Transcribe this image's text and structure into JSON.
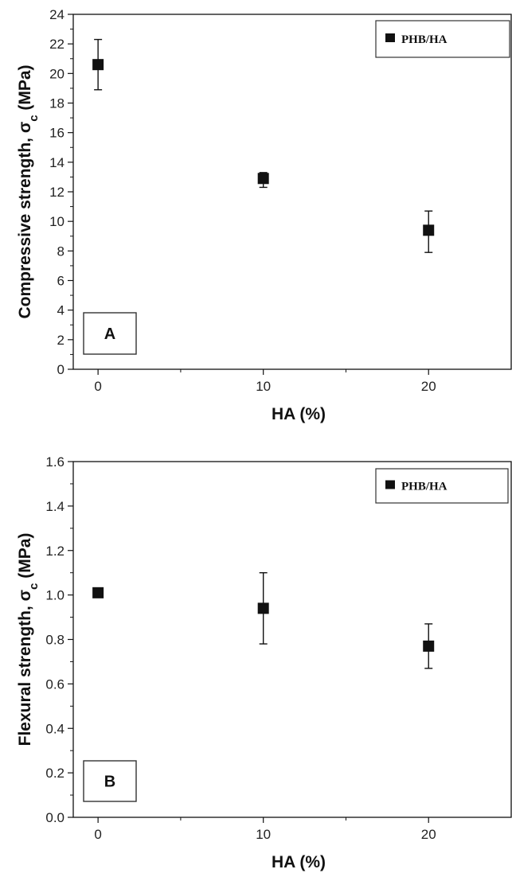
{
  "chart_data": [
    {
      "type": "scatter",
      "panel_label": "A",
      "xlabel": "HA (%)",
      "ylabel_main": "Compressive strength, σ",
      "ylabel_sub": "c",
      "ylabel_unit": " (MPa)",
      "xlim": [
        -1.5,
        25
      ],
      "ylim": [
        0,
        24
      ],
      "xticks": [
        0,
        10,
        20
      ],
      "yticks": [
        0,
        2,
        4,
        6,
        8,
        10,
        12,
        14,
        16,
        18,
        20,
        22,
        24
      ],
      "ytick_decimals": 0,
      "legend_position": "top-right",
      "series": [
        {
          "name": "PHB/HA",
          "color": "#111111",
          "marker": "square",
          "points": [
            {
              "x": 0,
              "y": 20.6,
              "err_low": 18.9,
              "err_high": 22.3
            },
            {
              "x": 10,
              "y": 12.9,
              "err_low": 12.3,
              "err_high": 13.3
            },
            {
              "x": 20,
              "y": 9.4,
              "err_low": 7.9,
              "err_high": 10.7
            }
          ]
        }
      ]
    },
    {
      "type": "scatter",
      "panel_label": "B",
      "xlabel": "HA (%)",
      "ylabel_main": "Flexural strength, σ",
      "ylabel_sub": "c",
      "ylabel_unit": " (MPa)",
      "xlim": [
        -1.5,
        25
      ],
      "ylim": [
        0,
        1.6
      ],
      "xticks": [
        0,
        10,
        20
      ],
      "yticks": [
        0.0,
        0.2,
        0.4,
        0.6,
        0.8,
        1.0,
        1.2,
        1.4,
        1.6
      ],
      "ytick_decimals": 1,
      "legend_position": "top-right",
      "series": [
        {
          "name": "PHB/HA",
          "color": "#111111",
          "marker": "square",
          "points": [
            {
              "x": 0,
              "y": 1.01,
              "err_low": 1.0,
              "err_high": 1.02
            },
            {
              "x": 10,
              "y": 0.94,
              "err_low": 0.78,
              "err_high": 1.1
            },
            {
              "x": 20,
              "y": 0.77,
              "err_low": 0.67,
              "err_high": 0.87
            }
          ]
        }
      ]
    }
  ]
}
